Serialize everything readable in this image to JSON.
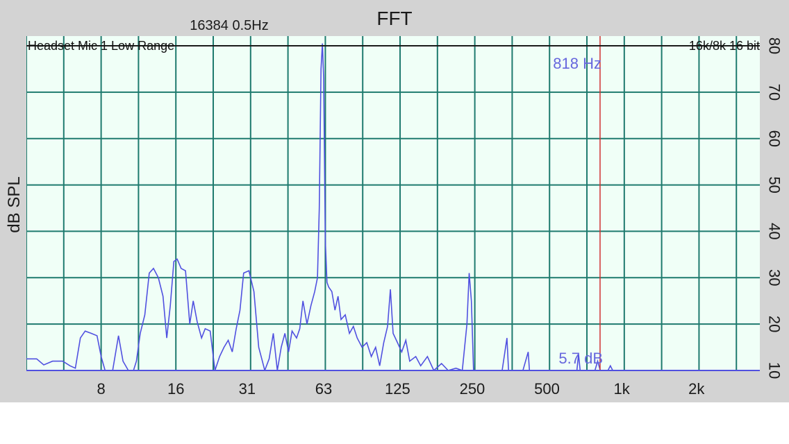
{
  "chart_data": {
    "type": "line",
    "title": "FFT",
    "info_left": "16384  0.5Hz",
    "label_left": "Headset Mic 1 Low Range",
    "label_right": "16k/8k 16 bit",
    "ylabel": "dB SPL",
    "xscale": "log",
    "xlim": [
      4,
      3600
    ],
    "ylim": [
      10,
      80
    ],
    "x_ticks": [
      {
        "value": 8,
        "label": "8"
      },
      {
        "value": 16,
        "label": "16"
      },
      {
        "value": 31,
        "label": "31"
      },
      {
        "value": 63,
        "label": "63"
      },
      {
        "value": 125,
        "label": "125"
      },
      {
        "value": 250,
        "label": "250"
      },
      {
        "value": 500,
        "label": "500"
      },
      {
        "value": 1000,
        "label": "1k"
      },
      {
        "value": 2000,
        "label": "2k"
      }
    ],
    "y_ticks": [
      {
        "value": 10,
        "label": "10"
      },
      {
        "value": 20,
        "label": "20"
      },
      {
        "value": 30,
        "label": "30"
      },
      {
        "value": 40,
        "label": "40"
      },
      {
        "value": 50,
        "label": "50"
      },
      {
        "value": 60,
        "label": "60"
      },
      {
        "value": 70,
        "label": "70"
      },
      {
        "value": 80,
        "label": "80"
      }
    ],
    "grid": true,
    "cursor": {
      "x": 818,
      "freq_label": "818 Hz",
      "level_label": "5.7 dB"
    },
    "colors": {
      "background": "#f0fff7",
      "grid": "#1e7a6e",
      "series": "#5050e0",
      "cursor": "#d03030",
      "readout": "#6666dd",
      "frame": "#d3d3d3"
    },
    "series": [
      {
        "points": [
          [
            4.0,
            12.5
          ],
          [
            4.4,
            12.5
          ],
          [
            4.7,
            11.2
          ],
          [
            5.1,
            12.0
          ],
          [
            5.6,
            12.0
          ],
          [
            6.0,
            11.0
          ],
          [
            6.3,
            10.5
          ],
          [
            6.6,
            17.0
          ],
          [
            6.9,
            18.5
          ],
          [
            7.3,
            18.0
          ],
          [
            7.7,
            17.5
          ],
          [
            8.0,
            13.0
          ],
          [
            8.3,
            10.0
          ],
          [
            8.9,
            10.0
          ],
          [
            9.4,
            17.5
          ],
          [
            9.8,
            12.0
          ],
          [
            10.3,
            10.0
          ],
          [
            10.8,
            10.0
          ],
          [
            11.1,
            12.0
          ],
          [
            11.5,
            18.0
          ],
          [
            12.0,
            22.0
          ],
          [
            12.5,
            31.0
          ],
          [
            13.0,
            32.0
          ],
          [
            13.6,
            30.0
          ],
          [
            14.2,
            26.0
          ],
          [
            14.7,
            17.0
          ],
          [
            15.2,
            24.0
          ],
          [
            15.7,
            33.5
          ],
          [
            16.2,
            34.0
          ],
          [
            16.8,
            32.0
          ],
          [
            17.5,
            31.5
          ],
          [
            18.2,
            20.0
          ],
          [
            18.8,
            25.0
          ],
          [
            19.5,
            20.5
          ],
          [
            20.3,
            17.0
          ],
          [
            21.0,
            19.0
          ],
          [
            22.0,
            18.5
          ],
          [
            23.0,
            10.0
          ],
          [
            24.0,
            13.0
          ],
          [
            25.0,
            15.0
          ],
          [
            26.0,
            16.5
          ],
          [
            27.0,
            14.0
          ],
          [
            28.0,
            19.0
          ],
          [
            29.0,
            23.0
          ],
          [
            30.0,
            31.0
          ],
          [
            31.5,
            31.5
          ],
          [
            33.0,
            27.0
          ],
          [
            34.5,
            15.0
          ],
          [
            35.5,
            12.5
          ],
          [
            36.5,
            10.0
          ],
          [
            38.0,
            12.5
          ],
          [
            39.5,
            18.0
          ],
          [
            41.0,
            10.0
          ],
          [
            42.5,
            15.0
          ],
          [
            44.0,
            18.0
          ],
          [
            45.5,
            14.0
          ],
          [
            47.0,
            18.5
          ],
          [
            49.0,
            17.0
          ],
          [
            50.5,
            19.0
          ],
          [
            52.0,
            25.0
          ],
          [
            54.0,
            20.0
          ],
          [
            56.0,
            24.0
          ],
          [
            58.0,
            27.0
          ],
          [
            59.5,
            30.0
          ],
          [
            60.5,
            45.0
          ],
          [
            61.5,
            75.0
          ],
          [
            62.3,
            80.5
          ],
          [
            63.0,
            73.0
          ],
          [
            64.0,
            38.0
          ],
          [
            65.0,
            29.0
          ],
          [
            66.0,
            28.0
          ],
          [
            68.0,
            27.0
          ],
          [
            70.0,
            23.0
          ],
          [
            72.0,
            26.0
          ],
          [
            74.0,
            21.0
          ],
          [
            77.0,
            22.0
          ],
          [
            80.0,
            18.0
          ],
          [
            83.0,
            19.5
          ],
          [
            86.0,
            17.0
          ],
          [
            90.0,
            15.0
          ],
          [
            94.0,
            16.0
          ],
          [
            98.0,
            13.0
          ],
          [
            102.0,
            15.0
          ],
          [
            106.0,
            11.0
          ],
          [
            110.0,
            16.0
          ],
          [
            114.0,
            19.5
          ],
          [
            117.0,
            27.5
          ],
          [
            120.0,
            18.0
          ],
          [
            125.0,
            16.0
          ],
          [
            130.0,
            14.0
          ],
          [
            135.0,
            16.5
          ],
          [
            140.0,
            12.0
          ],
          [
            148.0,
            13.0
          ],
          [
            155.0,
            11.0
          ],
          [
            165.0,
            13.0
          ],
          [
            175.0,
            10.0
          ],
          [
            188.0,
            11.5
          ],
          [
            200.0,
            10.0
          ],
          [
            215.0,
            10.5
          ],
          [
            228.0,
            10.0
          ],
          [
            238.0,
            20.0
          ],
          [
            243.0,
            31.0
          ],
          [
            248.0,
            25.0
          ],
          [
            253.0,
            10.0
          ],
          [
            290.0,
            10.0
          ],
          [
            330.0,
            10.0
          ],
          [
            345.0,
            17.0
          ],
          [
            350.0,
            10.0
          ],
          [
            400.0,
            10.0
          ],
          [
            420.0,
            14.0
          ],
          [
            425.0,
            10.0
          ],
          [
            600.0,
            10.0
          ],
          [
            660.0,
            10.0
          ],
          [
            670.0,
            13.5
          ],
          [
            680.0,
            10.0
          ],
          [
            780.0,
            10.0
          ],
          [
            800.0,
            12.0
          ],
          [
            820.0,
            10.0
          ],
          [
            880.0,
            10.0
          ],
          [
            900.0,
            11.0
          ],
          [
            920.0,
            10.0
          ],
          [
            3600.0,
            10.0
          ]
        ]
      }
    ]
  }
}
